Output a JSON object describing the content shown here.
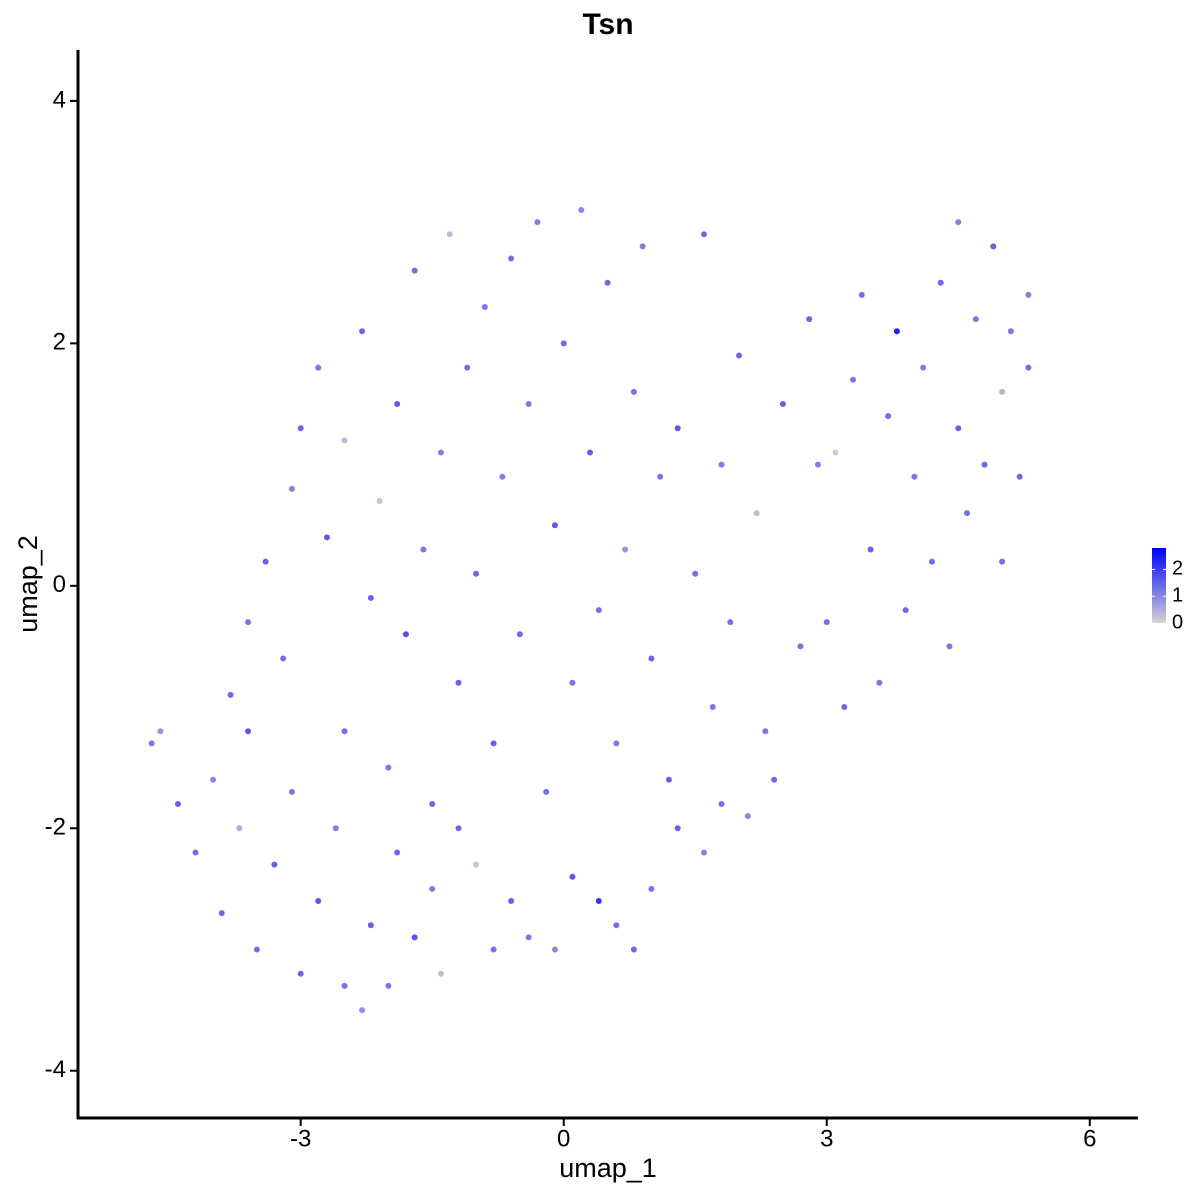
{
  "chart_data": {
    "type": "scatter",
    "title": "Tsn",
    "x_label": "umap_1",
    "y_label": "umap_2",
    "xlim": [
      -5.54,
      6.55
    ],
    "ylim": [
      -4.39,
      4.42
    ],
    "xticks": [
      -3,
      0,
      3,
      6
    ],
    "yticks": [
      -4,
      -2,
      0,
      2,
      4
    ],
    "colors": [
      "#d3d3d3",
      "#0000ff"
    ],
    "colorbar_lim": [
      0,
      2.8
    ],
    "colorbar_ticks": [
      0,
      1,
      2
    ],
    "x": [
      -4.7,
      -4.6,
      -4.4,
      -4.2,
      -4.0,
      -3.9,
      -3.7,
      -3.6,
      -3.5,
      -3.3,
      -3.1,
      -3.0,
      -2.8,
      -2.6,
      -2.5,
      -2.3,
      -2.2,
      -2.0,
      -1.9,
      -1.7,
      -1.5,
      -1.4,
      -1.2,
      -1.0,
      -0.8,
      -0.6,
      -0.4,
      -0.1,
      0.1,
      0.4,
      0.6,
      0.8,
      1.0,
      1.3,
      1.6,
      1.8,
      2.1,
      2.4,
      -3.8,
      -3.6,
      -3.4,
      -3.2,
      -3.1,
      -3.0,
      -2.8,
      -2.7,
      -2.5,
      -2.5,
      -2.3,
      -2.2,
      -2.1,
      -2.0,
      -1.9,
      -1.8,
      -1.7,
      -1.6,
      -1.5,
      -1.4,
      -1.3,
      -1.2,
      -1.1,
      -1.0,
      -0.9,
      -0.8,
      -0.7,
      -0.6,
      -0.5,
      -0.4,
      -0.3,
      -0.2,
      -0.1,
      0.0,
      0.1,
      0.2,
      0.3,
      0.4,
      0.5,
      0.6,
      0.7,
      0.8,
      0.9,
      1.0,
      1.1,
      1.2,
      1.3,
      1.5,
      1.6,
      1.7,
      1.8,
      1.9,
      2.0,
      2.2,
      2.3,
      2.5,
      2.7,
      2.8,
      2.9,
      3.0,
      3.1,
      3.2,
      3.3,
      3.4,
      3.5,
      3.6,
      3.7,
      3.8,
      3.9,
      4.0,
      4.1,
      4.2,
      4.3,
      4.4,
      4.5,
      4.5,
      4.6,
      4.7,
      4.8,
      4.9,
      5.0,
      5.0,
      5.1,
      5.2,
      5.3,
      5.3
    ],
    "y": [
      -1.3,
      -1.2,
      -1.8,
      -2.2,
      -1.6,
      -2.7,
      -2.0,
      -1.2,
      -3.0,
      -2.3,
      -1.7,
      -3.2,
      -2.6,
      -2.0,
      -3.3,
      -3.5,
      -2.8,
      -3.3,
      -2.2,
      -2.9,
      -2.5,
      -3.2,
      -2.0,
      -2.3,
      -3.0,
      -2.6,
      -2.9,
      -3.0,
      -2.4,
      -2.6,
      -2.8,
      -3.0,
      -2.5,
      -2.0,
      -2.2,
      -1.8,
      -1.9,
      -1.6,
      -0.9,
      -0.3,
      0.2,
      -0.6,
      0.8,
      1.3,
      1.8,
      0.4,
      -1.2,
      1.2,
      2.1,
      -0.1,
      0.7,
      -1.5,
      1.5,
      -0.4,
      2.6,
      0.3,
      -1.8,
      1.1,
      2.9,
      -0.8,
      1.8,
      0.1,
      2.3,
      -1.3,
      0.9,
      2.7,
      -0.4,
      1.5,
      3.0,
      -1.7,
      0.5,
      2.0,
      -0.8,
      3.1,
      1.1,
      -0.2,
      2.5,
      -1.3,
      0.3,
      1.6,
      2.8,
      -0.6,
      0.9,
      -1.6,
      1.3,
      0.1,
      2.9,
      -1.0,
      1.0,
      -0.3,
      1.9,
      0.6,
      -1.2,
      1.5,
      -0.5,
      2.2,
      1.0,
      -0.3,
      1.1,
      -1.0,
      1.7,
      2.4,
      0.3,
      -0.8,
      1.4,
      2.1,
      -0.2,
      0.9,
      1.8,
      0.2,
      2.5,
      -0.5,
      1.3,
      3.0,
      0.6,
      2.2,
      1.0,
      2.8,
      1.6,
      0.2,
      2.1,
      0.9,
      2.4,
      1.8
    ],
    "values": [
      1.2,
      0.8,
      1.5,
      1.3,
      1.0,
      1.4,
      0.5,
      1.6,
      1.3,
      1.5,
      1.2,
      1.4,
      1.6,
      1.1,
      1.3,
      0.9,
      1.5,
      1.2,
      1.4,
      1.7,
      1.1,
      0.3,
      1.4,
      0.2,
      1.3,
      1.5,
      1.2,
      1.0,
      1.6,
      2.1,
      1.3,
      1.4,
      1.2,
      1.5,
      1.1,
      1.3,
      1.0,
      1.4,
      1.4,
      1.2,
      1.5,
      1.3,
      1.1,
      1.4,
      1.2,
      1.6,
      1.3,
      0.3,
      1.4,
      1.5,
      0.2,
      1.2,
      1.6,
      1.7,
      1.3,
      1.2,
      1.4,
      1.1,
      0.3,
      1.5,
      1.3,
      1.4,
      1.2,
      1.5,
      1.1,
      1.3,
      1.4,
      1.2,
      1.1,
      1.3,
      1.6,
      1.4,
      1.2,
      1.0,
      1.5,
      1.3,
      1.4,
      1.2,
      0.8,
      1.3,
      1.1,
      1.4,
      1.2,
      1.5,
      1.6,
      1.3,
      1.4,
      1.2,
      1.1,
      1.3,
      1.4,
      0.3,
      1.2,
      1.5,
      1.3,
      1.4,
      1.1,
      1.3,
      0.1,
      1.4,
      1.2,
      1.3,
      1.5,
      1.2,
      1.3,
      2.4,
      1.4,
      1.2,
      1.1,
      1.3,
      1.4,
      1.2,
      1.5,
      1.1,
      1.3,
      1.2,
      1.4,
      1.5,
      0.4,
      1.3,
      1.2,
      1.4,
      1.1,
      1.3
    ]
  }
}
